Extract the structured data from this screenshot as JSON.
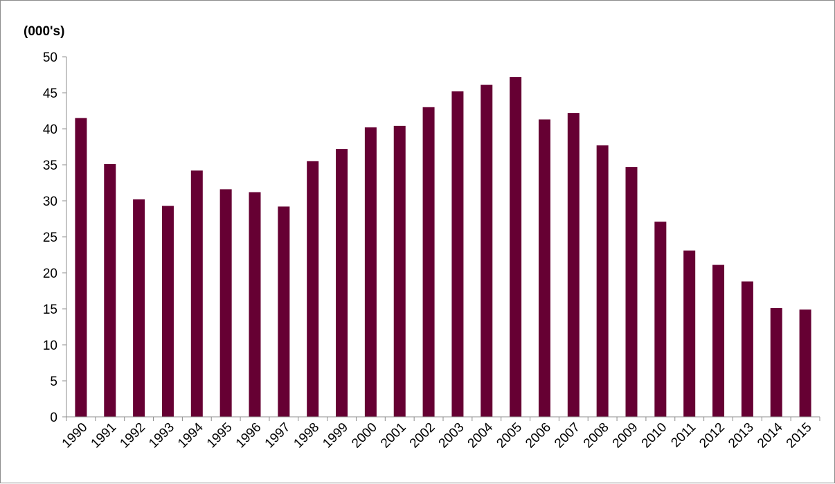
{
  "chart_data": {
    "type": "bar",
    "title": "",
    "xlabel": "",
    "ylabel": "(000's)",
    "categories": [
      "1990",
      "1991",
      "1992",
      "1993",
      "1994",
      "1995",
      "1996",
      "1997",
      "1998",
      "1999",
      "2000",
      "2001",
      "2002",
      "2003",
      "2004",
      "2005",
      "2006",
      "2007",
      "2008",
      "2009",
      "2010",
      "2011",
      "2012",
      "2013",
      "2014",
      "2015"
    ],
    "values": [
      41.5,
      35.1,
      30.2,
      29.3,
      34.2,
      31.6,
      31.2,
      29.2,
      35.5,
      37.2,
      40.2,
      40.4,
      43.0,
      45.2,
      46.1,
      47.2,
      41.3,
      42.2,
      37.7,
      34.7,
      27.1,
      23.1,
      21.1,
      18.8,
      15.1,
      14.9
    ],
    "ylim": [
      0,
      50
    ],
    "yticks": [
      "0",
      "5",
      "10",
      "15",
      "20",
      "25",
      "30",
      "35",
      "40",
      "45",
      "50"
    ],
    "grid": false,
    "legend": "none",
    "bar_color": "#660033"
  }
}
